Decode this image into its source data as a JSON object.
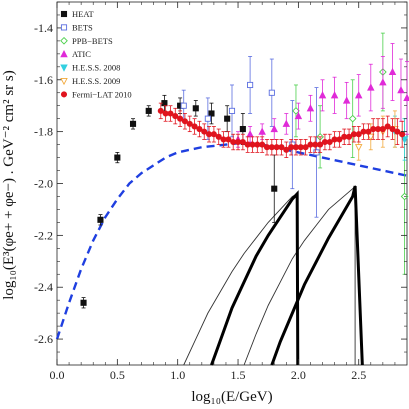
{
  "chart_data": {
    "type": "scatter",
    "xlabel": "log₁₀(E/GeV)",
    "ylabel": "log₁₀(E³(φe+ + φe−) . GeV⁻² cm² sr s)",
    "xlim": [
      0,
      2.9
    ],
    "ylim": [
      -2.7,
      -1.3
    ],
    "xticks": [
      0.0,
      0.5,
      1.0,
      1.5,
      2.0,
      2.5
    ],
    "xtick_labels": [
      "0.0",
      "0.5",
      "1.0",
      "1.5",
      "2.0",
      "2.5"
    ],
    "yticks": [
      -2.6,
      -2.4,
      -2.2,
      -2.0,
      -1.8,
      -1.6,
      -1.4
    ],
    "ytick_labels": [
      "-2.6",
      "-2.4",
      "-2.2",
      "-2.0",
      "-1.8",
      "-1.6",
      "-1.4"
    ],
    "legend_position": "top-left",
    "series": [
      {
        "name": "HEAT",
        "marker": "square-filled",
        "color": "#111111",
        "points": [
          [
            0.22,
            -2.46,
            0.02,
            0.02
          ],
          [
            0.36,
            -2.14,
            0.02,
            0.02
          ],
          [
            0.5,
            -1.9,
            0.02,
            0.02
          ],
          [
            0.63,
            -1.77,
            0.02,
            0.02
          ],
          [
            0.76,
            -1.72,
            0.02,
            0.02
          ],
          [
            0.89,
            -1.69,
            0.03,
            0.03
          ],
          [
            1.02,
            -1.7,
            0.03,
            0.03
          ],
          [
            1.15,
            -1.71,
            0.03,
            0.03
          ],
          [
            1.28,
            -1.73,
            0.04,
            0.04
          ],
          [
            1.41,
            -1.75,
            0.05,
            0.05
          ],
          [
            1.54,
            -1.79,
            0.06,
            0.06
          ],
          [
            1.8,
            -2.02,
            0.13,
            0.13
          ]
        ]
      },
      {
        "name": "BETS",
        "marker": "square-open",
        "color": "#5b6ee0",
        "points": [
          [
            1.05,
            -1.7,
            0.06,
            0.06
          ],
          [
            1.25,
            -1.75,
            0.08,
            0.08
          ],
          [
            1.45,
            -1.72,
            0.1,
            0.1
          ],
          [
            1.6,
            -1.62,
            0.11,
            0.11
          ],
          [
            1.78,
            -1.65,
            0.13,
            0.13
          ],
          [
            1.95,
            -1.85,
            0.17,
            0.17
          ],
          [
            2.15,
            -1.88,
            0.25,
            0.25
          ]
        ]
      },
      {
        "name": "PPB−BETS",
        "marker": "diamond-open",
        "color": "#4cd04c",
        "points": [
          [
            1.98,
            -1.72,
            0.1,
            0.1
          ],
          [
            2.18,
            -1.82,
            0.12,
            0.12
          ],
          [
            2.45,
            -1.75,
            0.15,
            0.15
          ],
          [
            2.7,
            -1.57,
            0.15,
            0.15
          ],
          [
            2.88,
            -2.05,
            0.3,
            0.3
          ]
        ]
      },
      {
        "name": "ATIC",
        "marker": "triangle-up-filled",
        "color": "#e02ad8",
        "points": [
          [
            1.5,
            -1.83,
            0.03,
            0.03
          ],
          [
            1.6,
            -1.81,
            0.03,
            0.03
          ],
          [
            1.7,
            -1.8,
            0.03,
            0.03
          ],
          [
            1.8,
            -1.79,
            0.04,
            0.04
          ],
          [
            1.9,
            -1.77,
            0.04,
            0.04
          ],
          [
            2.0,
            -1.74,
            0.05,
            0.05
          ],
          [
            2.1,
            -1.71,
            0.05,
            0.05
          ],
          [
            2.2,
            -1.66,
            0.06,
            0.06
          ],
          [
            2.3,
            -1.66,
            0.07,
            0.07
          ],
          [
            2.4,
            -1.68,
            0.07,
            0.07
          ],
          [
            2.5,
            -1.66,
            0.08,
            0.08
          ],
          [
            2.6,
            -1.63,
            0.09,
            0.09
          ],
          [
            2.7,
            -1.61,
            0.1,
            0.1
          ],
          [
            2.78,
            -1.57,
            0.11,
            0.11
          ],
          [
            2.85,
            -1.64,
            0.12,
            0.12
          ],
          [
            2.9,
            -1.67,
            0.14,
            0.14
          ]
        ]
      },
      {
        "name": "H.E.S.S. 2008",
        "marker": "triangle-down-filled",
        "color": "#33d0e0",
        "points": [
          [
            2.8,
            -1.8,
            0.06,
            0.06
          ],
          [
            2.88,
            -1.83,
            0.08,
            0.08
          ]
        ]
      },
      {
        "name": "H.E.S.S. 2009",
        "marker": "triangle-down-open",
        "color": "#f2a93b",
        "points": [
          [
            2.5,
            -1.86,
            0.05,
            0.05
          ],
          [
            2.6,
            -1.82,
            0.05,
            0.05
          ],
          [
            2.7,
            -1.8,
            0.06,
            0.06
          ],
          [
            2.8,
            -1.79,
            0.07,
            0.07
          ]
        ]
      },
      {
        "name": "Fermi−LAT 2010",
        "marker": "circle-filled",
        "color": "#e0141e",
        "points": [
          [
            0.86,
            -1.72,
            0.03,
            0.03
          ],
          [
            0.9,
            -1.73,
            0.03,
            0.03
          ],
          [
            0.94,
            -1.73,
            0.03,
            0.03
          ],
          [
            0.98,
            -1.74,
            0.03,
            0.03
          ],
          [
            1.02,
            -1.75,
            0.03,
            0.03
          ],
          [
            1.06,
            -1.76,
            0.03,
            0.03
          ],
          [
            1.1,
            -1.77,
            0.03,
            0.03
          ],
          [
            1.14,
            -1.78,
            0.03,
            0.03
          ],
          [
            1.18,
            -1.79,
            0.03,
            0.03
          ],
          [
            1.22,
            -1.8,
            0.03,
            0.03
          ],
          [
            1.26,
            -1.81,
            0.03,
            0.03
          ],
          [
            1.3,
            -1.81,
            0.03,
            0.03
          ],
          [
            1.34,
            -1.82,
            0.03,
            0.03
          ],
          [
            1.38,
            -1.83,
            0.03,
            0.03
          ],
          [
            1.42,
            -1.83,
            0.03,
            0.03
          ],
          [
            1.46,
            -1.84,
            0.03,
            0.03
          ],
          [
            1.5,
            -1.84,
            0.03,
            0.03
          ],
          [
            1.54,
            -1.84,
            0.03,
            0.03
          ],
          [
            1.58,
            -1.85,
            0.03,
            0.03
          ],
          [
            1.62,
            -1.85,
            0.03,
            0.03
          ],
          [
            1.66,
            -1.85,
            0.03,
            0.03
          ],
          [
            1.7,
            -1.85,
            0.03,
            0.03
          ],
          [
            1.74,
            -1.86,
            0.03,
            0.03
          ],
          [
            1.78,
            -1.86,
            0.03,
            0.03
          ],
          [
            1.82,
            -1.86,
            0.03,
            0.03
          ],
          [
            1.86,
            -1.86,
            0.03,
            0.03
          ],
          [
            1.9,
            -1.87,
            0.03,
            0.03
          ],
          [
            1.94,
            -1.86,
            0.03,
            0.03
          ],
          [
            1.98,
            -1.86,
            0.03,
            0.03
          ],
          [
            2.02,
            -1.86,
            0.03,
            0.03
          ],
          [
            2.06,
            -1.86,
            0.03,
            0.03
          ],
          [
            2.1,
            -1.85,
            0.03,
            0.03
          ],
          [
            2.14,
            -1.85,
            0.03,
            0.03
          ],
          [
            2.18,
            -1.85,
            0.03,
            0.03
          ],
          [
            2.22,
            -1.84,
            0.03,
            0.03
          ],
          [
            2.26,
            -1.84,
            0.03,
            0.03
          ],
          [
            2.3,
            -1.83,
            0.03,
            0.03
          ],
          [
            2.34,
            -1.83,
            0.03,
            0.03
          ],
          [
            2.38,
            -1.82,
            0.03,
            0.03
          ],
          [
            2.42,
            -1.82,
            0.03,
            0.03
          ],
          [
            2.46,
            -1.81,
            0.03,
            0.03
          ],
          [
            2.5,
            -1.81,
            0.03,
            0.03
          ],
          [
            2.54,
            -1.8,
            0.03,
            0.03
          ],
          [
            2.58,
            -1.8,
            0.03,
            0.03
          ],
          [
            2.62,
            -1.79,
            0.04,
            0.04
          ],
          [
            2.66,
            -1.79,
            0.04,
            0.04
          ],
          [
            2.7,
            -1.79,
            0.04,
            0.04
          ],
          [
            2.74,
            -1.78,
            0.04,
            0.04
          ],
          [
            2.78,
            -1.79,
            0.04,
            0.04
          ],
          [
            2.82,
            -1.8,
            0.05,
            0.05
          ],
          [
            2.86,
            -1.81,
            0.05,
            0.05
          ]
        ]
      }
    ],
    "curves": [
      {
        "style": "dashed",
        "color": "#1f3fe0",
        "points": [
          [
            0.0,
            -2.6
          ],
          [
            0.1,
            -2.46
          ],
          [
            0.2,
            -2.33
          ],
          [
            0.3,
            -2.22
          ],
          [
            0.4,
            -2.13
          ],
          [
            0.5,
            -2.06
          ],
          [
            0.6,
            -2.0
          ],
          [
            0.7,
            -1.96
          ],
          [
            0.8,
            -1.93
          ],
          [
            0.9,
            -1.9
          ],
          [
            1.0,
            -1.88
          ],
          [
            1.1,
            -1.87
          ],
          [
            1.2,
            -1.86
          ],
          [
            1.3,
            -1.855
          ],
          [
            1.4,
            -1.85
          ],
          [
            1.5,
            -1.845
          ],
          [
            1.6,
            -1.845
          ],
          [
            1.7,
            -1.85
          ],
          [
            1.8,
            -1.86
          ],
          [
            1.9,
            -1.87
          ],
          [
            2.0,
            -1.88
          ],
          [
            2.1,
            -1.89
          ],
          [
            2.2,
            -1.9
          ],
          [
            2.3,
            -1.91
          ],
          [
            2.4,
            -1.92
          ],
          [
            2.5,
            -1.93
          ],
          [
            2.6,
            -1.94
          ],
          [
            2.7,
            -1.95
          ],
          [
            2.8,
            -1.96
          ],
          [
            2.9,
            -1.97
          ]
        ]
      },
      {
        "style": "thin",
        "color": "#333333",
        "points": [
          [
            1.05,
            -2.7
          ],
          [
            1.15,
            -2.6
          ],
          [
            1.25,
            -2.5
          ],
          [
            1.35,
            -2.42
          ],
          [
            1.45,
            -2.34
          ],
          [
            1.55,
            -2.27
          ],
          [
            1.65,
            -2.21
          ],
          [
            1.75,
            -2.15
          ],
          [
            1.85,
            -2.1
          ],
          [
            1.95,
            -2.05
          ],
          [
            1.99,
            -2.04
          ],
          [
            1.99,
            -2.7
          ]
        ]
      },
      {
        "style": "thin",
        "color": "#333333",
        "points": [
          [
            1.55,
            -2.7
          ],
          [
            1.65,
            -2.58
          ],
          [
            1.75,
            -2.47
          ],
          [
            1.85,
            -2.38
          ],
          [
            1.95,
            -2.29
          ],
          [
            2.05,
            -2.22
          ],
          [
            2.15,
            -2.16
          ],
          [
            2.25,
            -2.1
          ],
          [
            2.35,
            -2.06
          ],
          [
            2.45,
            -2.02
          ],
          [
            2.47,
            -2.01
          ],
          [
            2.47,
            -2.7
          ]
        ]
      },
      {
        "style": "thick",
        "color": "#000000",
        "points": [
          [
            1.28,
            -2.7
          ],
          [
            1.35,
            -2.61
          ],
          [
            1.45,
            -2.48
          ],
          [
            1.55,
            -2.38
          ],
          [
            1.65,
            -2.28
          ],
          [
            1.75,
            -2.2
          ],
          [
            1.85,
            -2.13
          ],
          [
            1.95,
            -2.06
          ],
          [
            1.99,
            -2.04
          ],
          [
            1.995,
            -2.7
          ]
        ]
      },
      {
        "style": "thick",
        "color": "#000000",
        "points": [
          [
            1.78,
            -2.7
          ],
          [
            1.85,
            -2.61
          ],
          [
            1.95,
            -2.5
          ],
          [
            2.05,
            -2.39
          ],
          [
            2.15,
            -2.3
          ],
          [
            2.25,
            -2.21
          ],
          [
            2.35,
            -2.13
          ],
          [
            2.45,
            -2.05
          ],
          [
            2.47,
            -2.01
          ],
          [
            2.53,
            -2.7
          ]
        ]
      }
    ]
  }
}
